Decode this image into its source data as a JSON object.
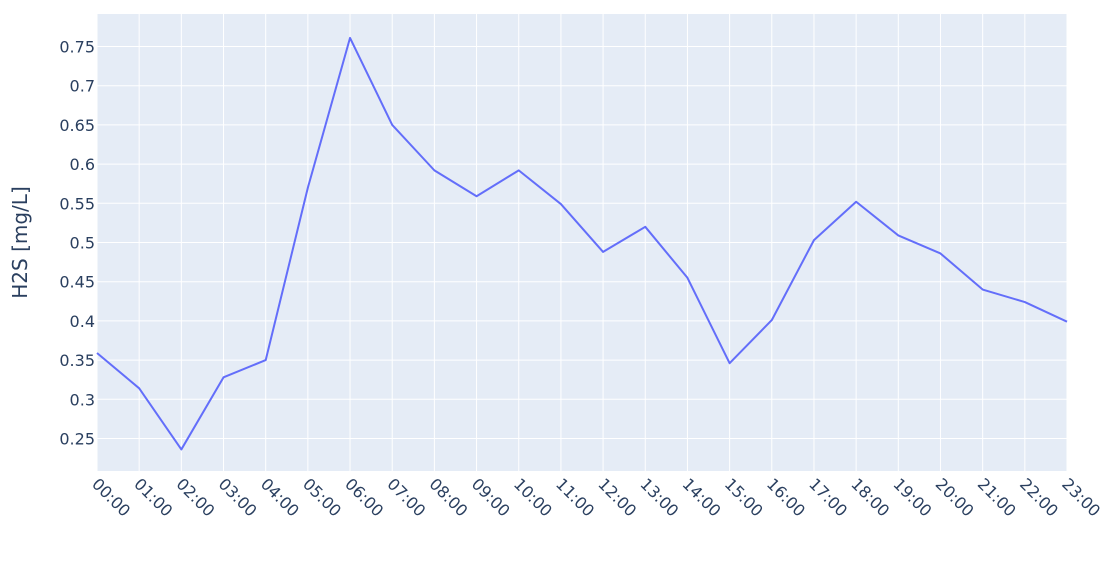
{
  "chart_data": {
    "type": "line",
    "title": "",
    "xlabel": "",
    "ylabel": "H2S [mg/L]",
    "x": [
      "00:00",
      "01:00",
      "02:00",
      "03:00",
      "04:00",
      "05:00",
      "06:00",
      "07:00",
      "08:00",
      "09:00",
      "10:00",
      "11:00",
      "12:00",
      "13:00",
      "14:00",
      "15:00",
      "16:00",
      "17:00",
      "18:00",
      "19:00",
      "20:00",
      "21:00",
      "22:00",
      "23:00"
    ],
    "series": [
      {
        "values": [
          0.359,
          0.314,
          0.236,
          0.328,
          0.35,
          0.57,
          0.761,
          0.65,
          0.592,
          0.559,
          0.592,
          0.549,
          0.488,
          0.52,
          0.455,
          0.346,
          0.401,
          0.503,
          0.552,
          0.509,
          0.486,
          0.44,
          0.424,
          0.399
        ],
        "color": "#636efa"
      }
    ],
    "ylim": [
      0.2085,
      0.7915
    ],
    "yticks": [
      0.25,
      0.3,
      0.35,
      0.4,
      0.45,
      0.5,
      0.55,
      0.6,
      0.65,
      0.7,
      0.75
    ],
    "ytick_labels": [
      "0.25",
      "0.3",
      "0.35",
      "0.4",
      "0.45",
      "0.5",
      "0.55",
      "0.6",
      "0.65",
      "0.7",
      "0.75"
    ],
    "grid": true,
    "plot_background": "#e5ecf6",
    "grid_color": "#ffffff",
    "text_color": "#2a3f5f"
  }
}
